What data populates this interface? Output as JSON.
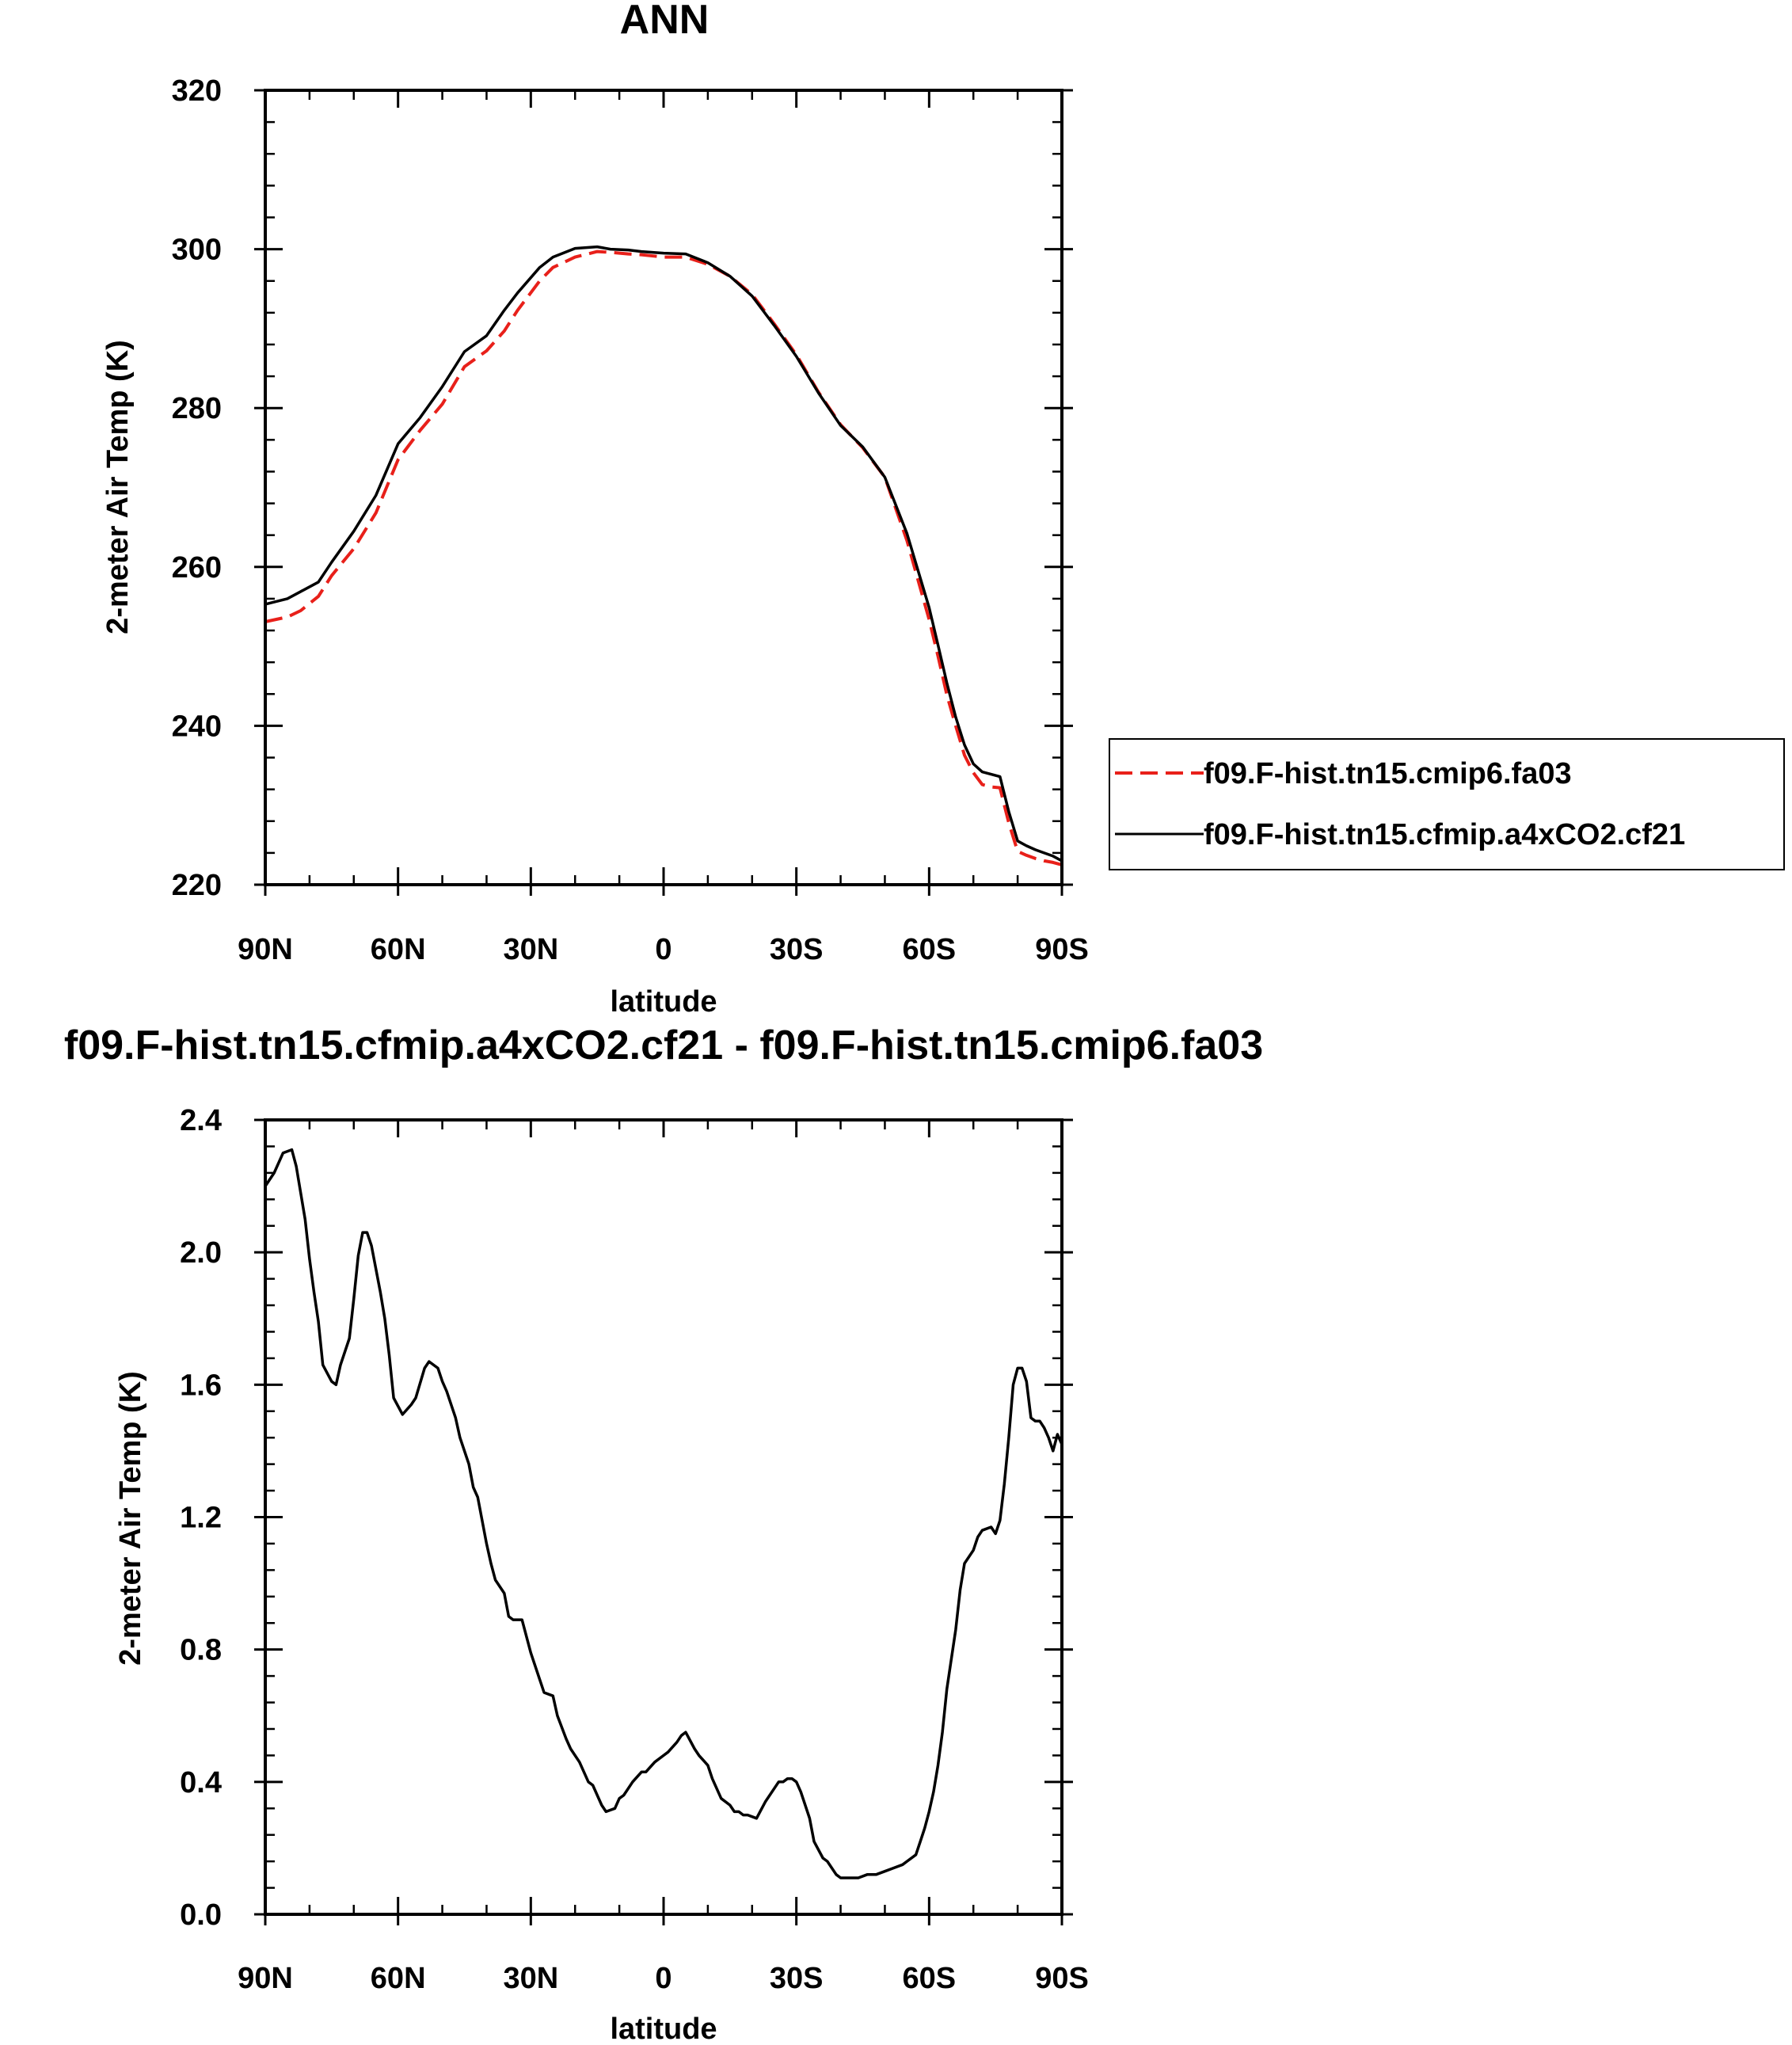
{
  "chart_data": [
    {
      "type": "line",
      "title": "ANN",
      "xlabel": "latitude",
      "ylabel": "2-meter Air Temp (K)",
      "xlim": [
        90,
        -90
      ],
      "ylim": [
        220,
        320
      ],
      "xticks": [
        90,
        60,
        30,
        0,
        -30,
        -60,
        -90
      ],
      "xtick_labels": [
        "90N",
        "60N",
        "30N",
        "0",
        "30S",
        "60S",
        "90S"
      ],
      "yticks": [
        220,
        240,
        260,
        280,
        300,
        320
      ],
      "ytick_labels": [
        "220",
        "240",
        "260",
        "280",
        "300",
        "320"
      ],
      "legend_position": "right",
      "series": [
        {
          "name": "f09.F-hist.tn15.cmip6.fa03",
          "color": "#e8201a",
          "dash": "dashed",
          "x": [
            90,
            85,
            82,
            78,
            75,
            70,
            65,
            60,
            55,
            50,
            45,
            40,
            36,
            33,
            28,
            25,
            20,
            15,
            12,
            8,
            5,
            0,
            -5,
            -10,
            -15,
            -20,
            -25,
            -30,
            -35,
            -40,
            -45,
            -50,
            -55,
            -60,
            -62,
            -64,
            -66,
            -68,
            -70,
            -72,
            -74,
            -76,
            -78,
            -80,
            -82,
            -84,
            -86,
            -88,
            -90
          ],
          "values": [
            253.1,
            253.7,
            254.5,
            256.3,
            258.9,
            262.3,
            266.8,
            273.5,
            277.2,
            280.5,
            285.2,
            287.2,
            289.7,
            292.3,
            296.0,
            297.7,
            299.0,
            299.7,
            299.6,
            299.4,
            299.3,
            299.0,
            299.0,
            298.1,
            296.6,
            294.3,
            290.6,
            286.7,
            282.0,
            277.9,
            275.0,
            271.3,
            263.3,
            253.4,
            248.8,
            243.9,
            240.0,
            236.3,
            234.1,
            232.6,
            232.3,
            232.2,
            227.8,
            224.2,
            223.7,
            223.3,
            223.0,
            222.8,
            222.5
          ]
        },
        {
          "name": "f09.F-hist.tn15.cfmip.a4xCO2.cf21",
          "color": "#000000",
          "dash": "solid",
          "x": [
            90,
            85,
            82,
            78,
            75,
            70,
            65,
            60,
            55,
            50,
            45,
            40,
            36,
            33,
            28,
            25,
            20,
            15,
            12,
            8,
            5,
            0,
            -5,
            -10,
            -15,
            -20,
            -25,
            -30,
            -35,
            -40,
            -45,
            -50,
            -55,
            -60,
            -62,
            -64,
            -66,
            -68,
            -70,
            -72,
            -74,
            -76,
            -78,
            -80,
            -82,
            -84,
            -86,
            -88,
            -90
          ],
          "values": [
            255.3,
            256.0,
            256.9,
            258.1,
            260.6,
            264.5,
            269.0,
            275.5,
            278.8,
            282.7,
            287.1,
            289.1,
            292.3,
            294.5,
            297.7,
            299.0,
            300.1,
            300.3,
            300.0,
            299.9,
            299.7,
            299.5,
            299.4,
            298.3,
            296.6,
            294.1,
            290.4,
            286.5,
            281.9,
            277.8,
            275.1,
            271.3,
            264.2,
            254.9,
            250.2,
            245.4,
            241.1,
            237.6,
            235.2,
            234.2,
            233.9,
            233.6,
            229.2,
            225.5,
            224.9,
            224.4,
            224.0,
            223.6,
            223.0
          ]
        }
      ]
    },
    {
      "type": "line",
      "title": "f09.F-hist.tn15.cfmip.a4xCO2.cf21 - f09.F-hist.tn15.cmip6.fa03",
      "xlabel": "latitude",
      "ylabel": "2-meter Air Temp (K)",
      "xlim": [
        90,
        -90
      ],
      "ylim": [
        0.0,
        2.4
      ],
      "xticks": [
        90,
        60,
        30,
        0,
        -30,
        -60,
        -90
      ],
      "xtick_labels": [
        "90N",
        "60N",
        "30N",
        "0",
        "30S",
        "60S",
        "90S"
      ],
      "yticks": [
        0.0,
        0.4,
        0.8,
        1.2,
        1.6,
        2.0,
        2.4
      ],
      "ytick_labels": [
        "0.0",
        "0.4",
        "0.8",
        "1.2",
        "1.6",
        "2.0",
        "2.4"
      ],
      "series": [
        {
          "color": "#000000",
          "dash": "solid",
          "x": [
            90,
            88,
            86,
            84,
            83,
            81,
            80,
            79,
            78,
            77,
            75,
            74,
            73,
            71,
            70,
            69,
            68,
            67,
            66,
            64,
            63,
            62,
            61,
            59,
            57,
            56,
            54,
            53,
            51,
            50,
            49,
            47,
            46,
            44,
            43,
            42,
            40,
            39,
            38,
            36,
            35,
            34,
            32,
            30,
            28,
            27,
            25,
            24,
            22,
            21,
            19,
            17,
            16,
            14,
            13,
            11,
            10,
            9,
            7,
            5,
            4,
            2,
            0,
            -1,
            -3,
            -4,
            -5,
            -7,
            -8,
            -10,
            -11,
            -13,
            -15,
            -16,
            -17,
            -18,
            -19,
            -21,
            -23,
            -25,
            -26,
            -27,
            -28,
            -29,
            -30,
            -31,
            -33,
            -34,
            -36,
            -37,
            -39,
            -40,
            -41,
            -42,
            -44,
            -46,
            -48,
            -50,
            -52,
            -54,
            -55,
            -57,
            -58,
            -59,
            -60,
            -61,
            -62,
            -63,
            -64,
            -66,
            -67,
            -68,
            -70,
            -71,
            -72,
            -74,
            -75,
            -76,
            -77,
            -78,
            -79,
            -80,
            -81,
            -82,
            -83,
            -84,
            -85,
            -86,
            -87,
            -88,
            -89,
            -90
          ],
          "values": [
            2.2,
            2.24,
            2.3,
            2.31,
            2.26,
            2.1,
            1.98,
            1.88,
            1.79,
            1.66,
            1.61,
            1.6,
            1.66,
            1.74,
            1.86,
            1.99,
            2.06,
            2.06,
            2.02,
            1.88,
            1.8,
            1.69,
            1.56,
            1.51,
            1.54,
            1.56,
            1.65,
            1.67,
            1.65,
            1.61,
            1.58,
            1.5,
            1.44,
            1.36,
            1.29,
            1.26,
            1.12,
            1.06,
            1.01,
            0.97,
            0.9,
            0.89,
            0.89,
            0.79,
            0.71,
            0.67,
            0.66,
            0.6,
            0.53,
            0.5,
            0.46,
            0.4,
            0.39,
            0.33,
            0.31,
            0.32,
            0.35,
            0.36,
            0.4,
            0.43,
            0.43,
            0.46,
            0.48,
            0.49,
            0.52,
            0.54,
            0.55,
            0.5,
            0.48,
            0.45,
            0.41,
            0.35,
            0.33,
            0.31,
            0.31,
            0.3,
            0.3,
            0.29,
            0.34,
            0.38,
            0.4,
            0.4,
            0.41,
            0.41,
            0.4,
            0.37,
            0.29,
            0.22,
            0.17,
            0.16,
            0.12,
            0.11,
            0.11,
            0.11,
            0.11,
            0.12,
            0.12,
            0.13,
            0.14,
            0.15,
            0.16,
            0.18,
            0.22,
            0.26,
            0.31,
            0.37,
            0.45,
            0.55,
            0.68,
            0.86,
            0.98,
            1.06,
            1.1,
            1.14,
            1.16,
            1.17,
            1.15,
            1.19,
            1.3,
            1.44,
            1.6,
            1.65,
            1.65,
            1.61,
            1.5,
            1.49,
            1.49,
            1.47,
            1.44,
            1.4,
            1.45,
            1.42
          ]
        }
      ]
    }
  ]
}
